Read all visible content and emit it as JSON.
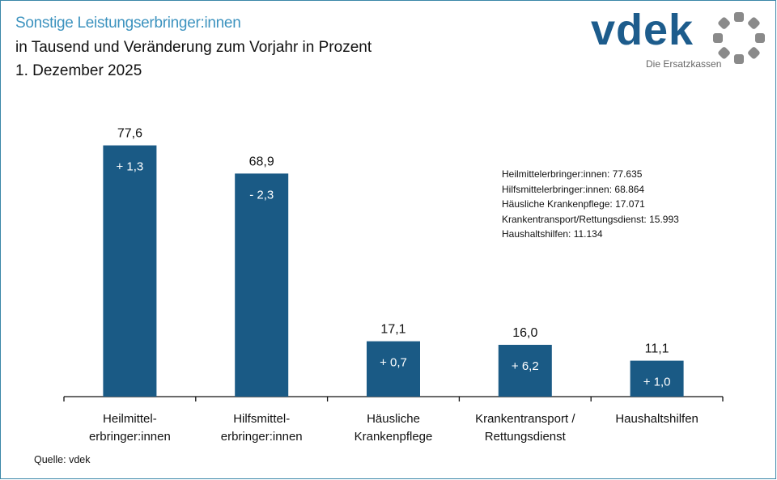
{
  "header": {
    "title": "Sonstige Leistungserbringer:innen",
    "subtitle": "in Tausend und Veränderung zum Vorjahr in Prozent",
    "date": "1. Dezember 2025"
  },
  "logo": {
    "name": "vdek",
    "tagline": "Die Ersatzkassen"
  },
  "info_box": [
    "Heilmittelerbringer:innen: 77.635",
    "Hilfsmittelerbringer:innen: 68.864",
    "Häusliche Krankenpflege: 17.071",
    "Krankentransport/Rettungsdienst: 15.993",
    "Haushaltshilfen: 11.134"
  ],
  "source": "Quelle: vdek",
  "colors": {
    "bar": "#1a5a85",
    "title": "#3d93bf",
    "frame": "#3a87a8",
    "logo_blue": "#1d5c8c",
    "logo_gray": "#8a8a8a"
  },
  "chart_data": {
    "type": "bar",
    "title": "Sonstige Leistungserbringer:innen",
    "subtitle": "in Tausend und Veränderung zum Vorjahr in Prozent",
    "xlabel": "",
    "ylabel": "",
    "ylim": [
      0,
      80
    ],
    "grid": false,
    "legend": "none",
    "categories": [
      [
        "Heilmittel-",
        "erbringer:innen"
      ],
      [
        "Hilfsmittel-",
        "erbringer:innen"
      ],
      [
        "Häusliche",
        "Krankenpflege"
      ],
      [
        "Krankentransport /",
        "Rettungsdienst"
      ],
      [
        "Haushaltshilfen"
      ]
    ],
    "values": [
      77.6,
      68.9,
      17.1,
      16.0,
      11.1
    ],
    "value_labels": [
      "77,6",
      "68,9",
      "17,1",
      "16,0",
      "11,1"
    ],
    "change_pct": [
      1.3,
      -2.3,
      0.7,
      6.2,
      1.0
    ],
    "change_labels": [
      "+ 1,3",
      "- 2,3",
      "+ 0,7",
      "+ 6,2",
      "+ 1,0"
    ],
    "units": "Tausend"
  }
}
